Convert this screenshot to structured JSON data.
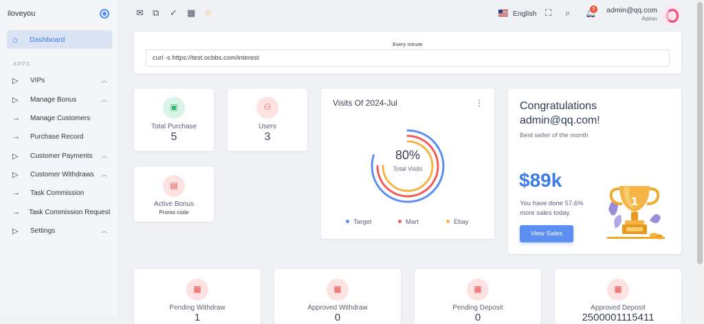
{
  "sidebar": {
    "brand": "iloveyou",
    "active_item": "Dashboard",
    "section": "APPS",
    "items": [
      {
        "label": "VIPs",
        "icon": "triangle-right-icon",
        "expandable": true
      },
      {
        "label": "Manage Bonus",
        "icon": "triangle-right-icon",
        "expandable": true
      },
      {
        "label": "Manage Customers",
        "icon": "arrow-right-icon",
        "expandable": false
      },
      {
        "label": "Purchase Record",
        "icon": "arrow-right-icon",
        "expandable": false
      },
      {
        "label": "Customer Payments",
        "icon": "triangle-right-icon",
        "expandable": true
      },
      {
        "label": "Customer Withdraws",
        "icon": "triangle-right-icon",
        "expandable": true
      },
      {
        "label": "Task Commission",
        "icon": "arrow-right-icon",
        "expandable": false
      },
      {
        "label": "Task Commission Request",
        "icon": "arrow-right-icon",
        "expandable": false
      },
      {
        "label": "Settings",
        "icon": "triangle-right-icon",
        "expandable": true
      }
    ]
  },
  "topbar": {
    "language": "English",
    "notifications": "5",
    "user_email": "admin@qq.com",
    "user_role": "Admin"
  },
  "cron": {
    "label": "Every minute",
    "command": "curl -s https://test.ocbbs.com/interest"
  },
  "stats": {
    "total_purchase": {
      "label": "Total Purchase",
      "value": "5"
    },
    "users": {
      "label": "Users",
      "value": "3"
    },
    "active_bonus": {
      "label": "Active Bonus",
      "sub": "Promo code"
    }
  },
  "visits": {
    "title": "Visits Of 2024-Jul",
    "percent": "80%",
    "percent_label": "Total Visits",
    "legend": [
      {
        "name": "Target",
        "color": "#5b8ef0"
      },
      {
        "name": "Mart",
        "color": "#ef5a5a"
      },
      {
        "name": "Ebay",
        "color": "#f5b443"
      }
    ]
  },
  "congrats": {
    "title": "Congratulations",
    "email": "admin@qq.com!",
    "subtitle": "Best seller of the month",
    "amount": "$89k",
    "note_line1": "You have done 57.6%",
    "note_line2": "more sales today.",
    "button": "View Sales"
  },
  "bottom_stats": [
    {
      "label": "Pending Withdraw",
      "value": "1"
    },
    {
      "label": "Approved Withdraw",
      "value": "0"
    },
    {
      "label": "Pending Deposit",
      "value": "0"
    },
    {
      "label": "Approved Deposit",
      "value": "2500001115411"
    }
  ],
  "colors": {
    "accent": "#3d7be3",
    "green": "#33b274",
    "rose": "#ea5050"
  }
}
